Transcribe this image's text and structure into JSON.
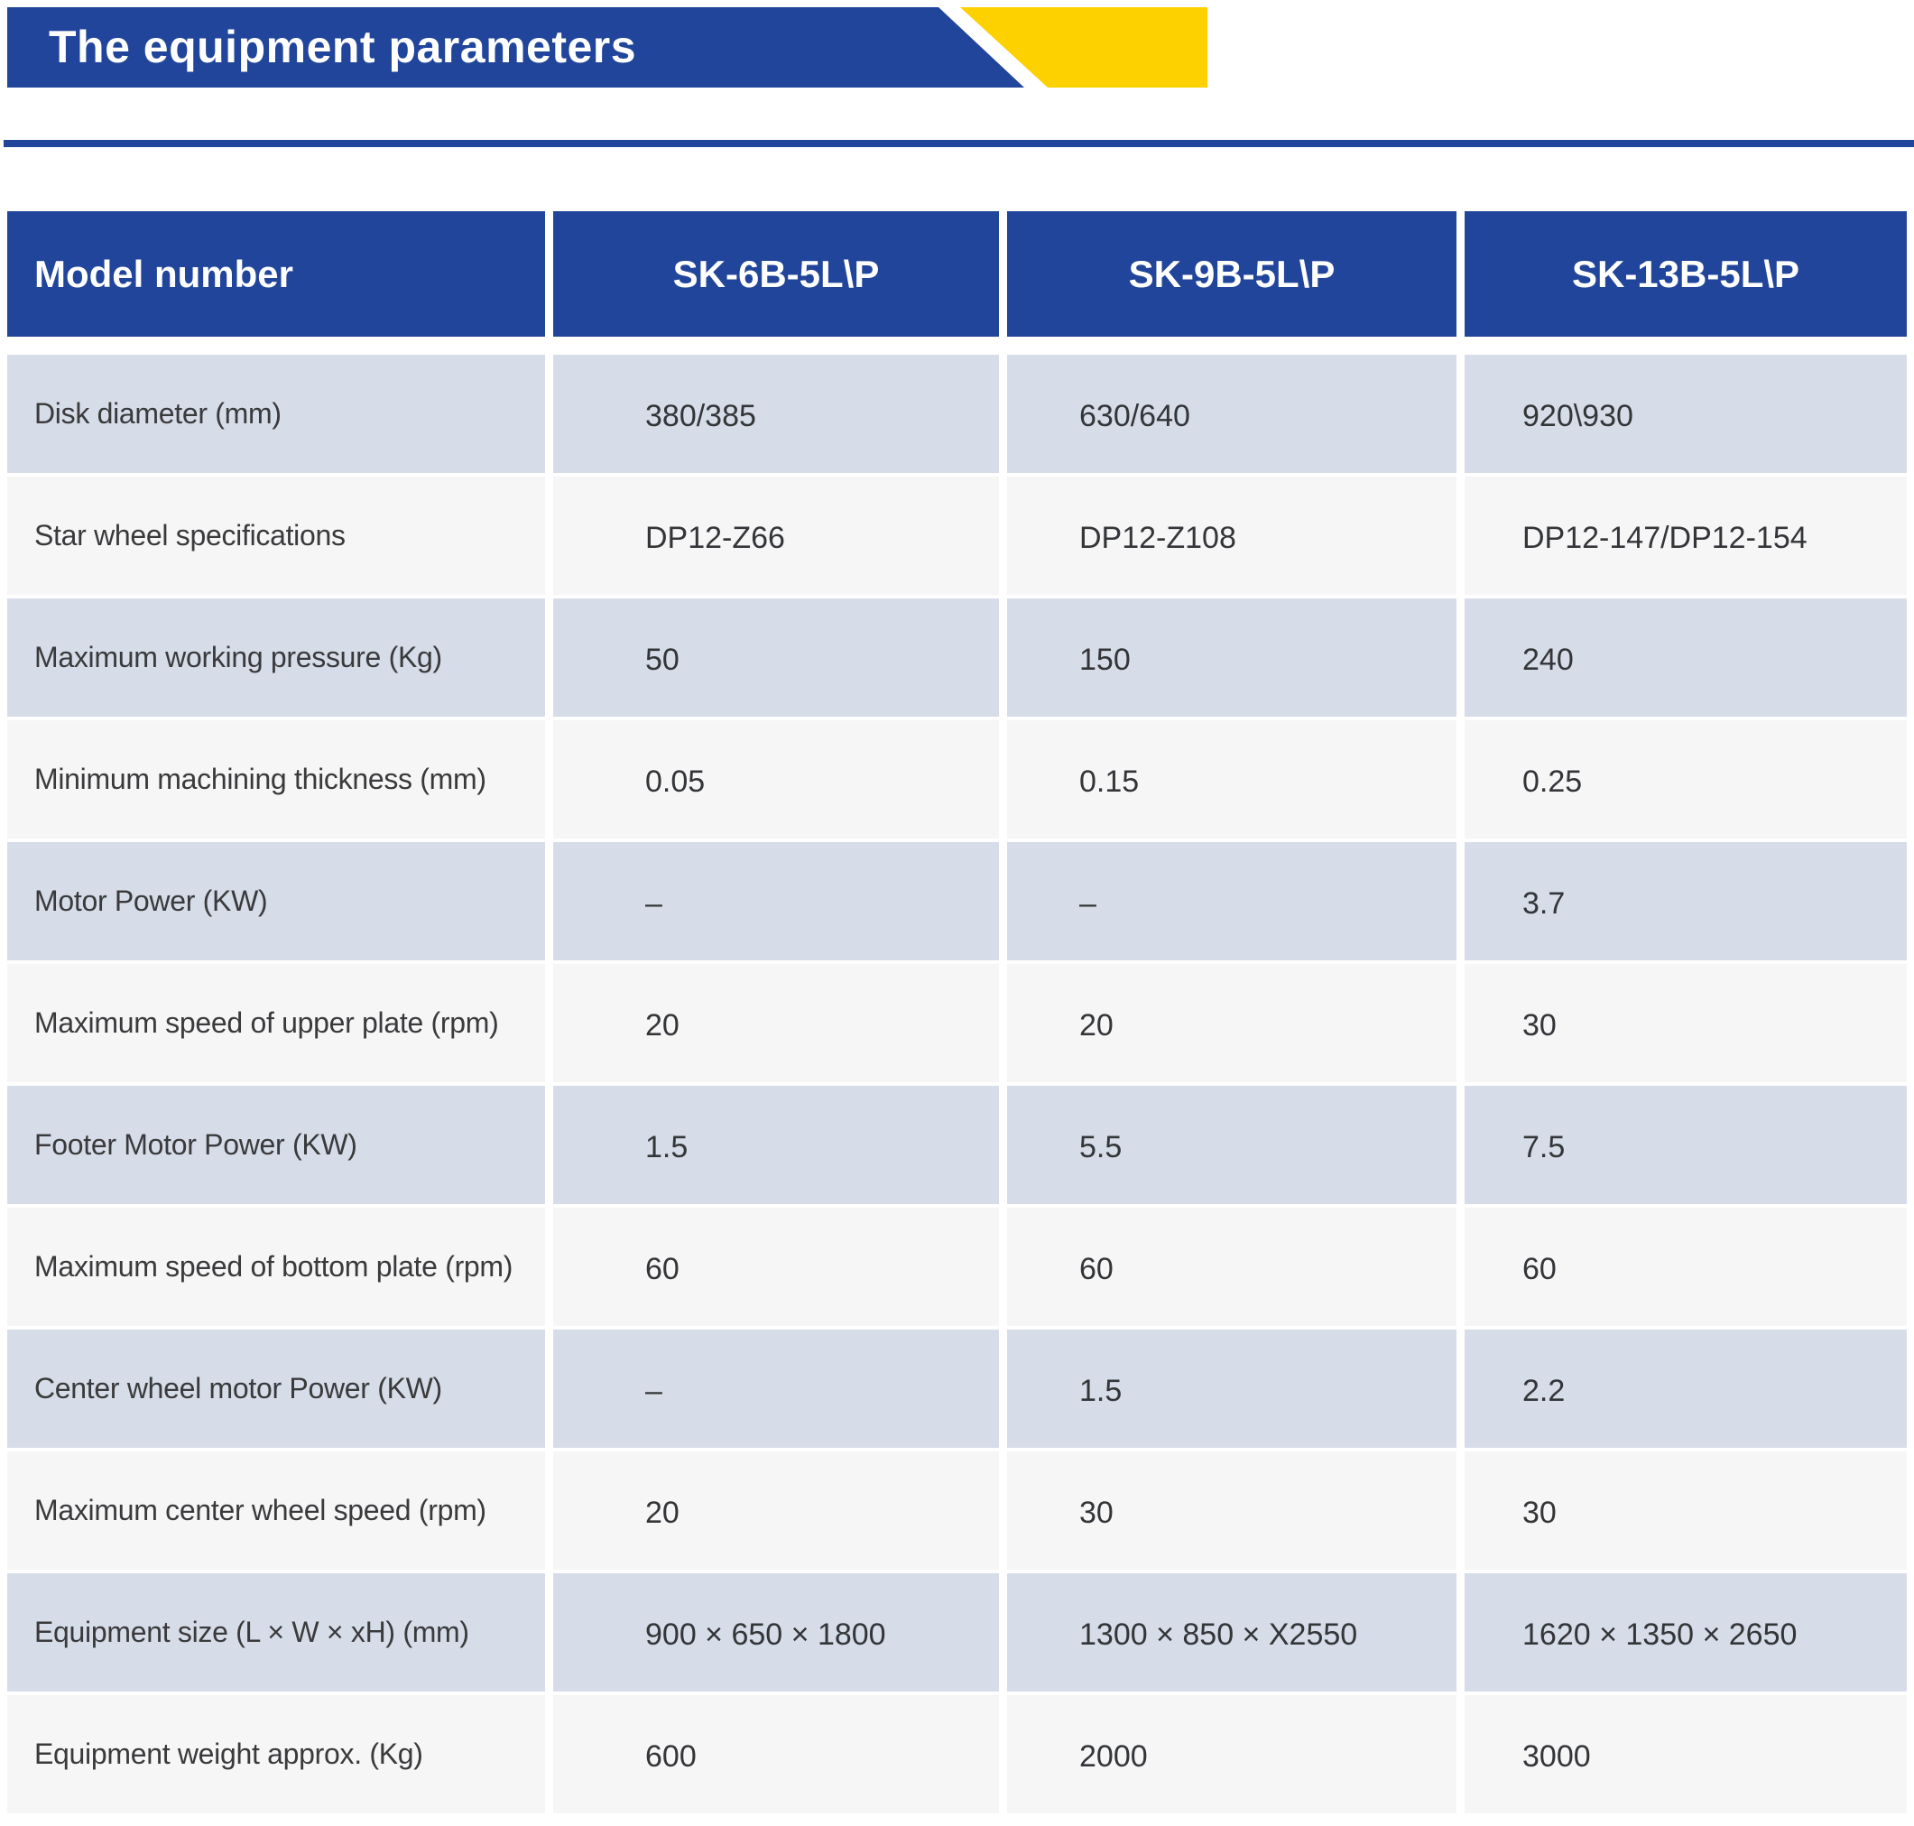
{
  "banner": {
    "title": "The equipment parameters"
  },
  "colors": {
    "primary_blue": "#21459a",
    "accent_yellow": "#fdd000",
    "row_alternate": "#d6dce8",
    "row_light": "#f6f6f7",
    "text_dark": "#3a3a3c",
    "header_text": "#ffffff"
  },
  "table": {
    "columns": [
      "Model number",
      "SK-6B-5L\\P",
      "SK-9B-5L\\P",
      "SK-13B-5L\\P"
    ],
    "rows": [
      {
        "label": "Disk diameter (mm)",
        "values": [
          "380/385",
          "630/640",
          "920\\930"
        ]
      },
      {
        "label": "Star wheel specifications",
        "values": [
          "DP12-Z66",
          "DP12-Z108",
          "DP12-147/DP12-154"
        ]
      },
      {
        "label": "Maximum working pressure (Kg)",
        "values": [
          "50",
          "150",
          "240"
        ]
      },
      {
        "label": "Minimum machining thickness (mm)",
        "values": [
          "0.05",
          "0.15",
          "0.25"
        ]
      },
      {
        "label": "Motor Power (KW)",
        "values": [
          "–",
          "–",
          "3.7"
        ]
      },
      {
        "label": "Maximum speed of upper plate (rpm)",
        "values": [
          "20",
          "20",
          "30"
        ]
      },
      {
        "label": "Footer Motor Power (KW)",
        "values": [
          "1.5",
          "5.5",
          "7.5"
        ]
      },
      {
        "label": "Maximum speed of bottom plate (rpm)",
        "values": [
          "60",
          "60",
          "60"
        ]
      },
      {
        "label": "Center wheel motor Power (KW)",
        "values": [
          "–",
          "1.5",
          "2.2"
        ]
      },
      {
        "label": "Maximum center wheel speed (rpm)",
        "values": [
          "20",
          "30",
          "30"
        ]
      },
      {
        "label": "Equipment size (L × W × xH) (mm)",
        "values": [
          "900 × 650 × 1800",
          "1300 × 850 × X2550",
          "1620 × 1350 × 2650"
        ]
      },
      {
        "label": "Equipment weight approx. (Kg)",
        "values": [
          "600",
          "2000",
          "3000"
        ]
      }
    ]
  }
}
